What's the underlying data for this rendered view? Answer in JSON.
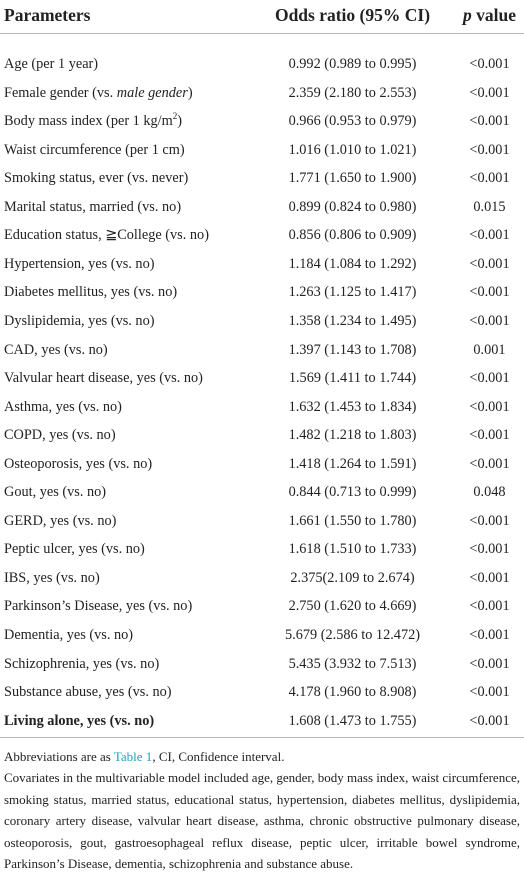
{
  "table": {
    "header": [
      "Parameters",
      "Odds ratio (95% CI)",
      [
        "p",
        " value"
      ]
    ],
    "rows": [
      [
        "Age (per 1 year)",
        "0.992 (0.989 to 0.995)",
        "<0.001"
      ],
      [
        [
          "Female gender (vs. ",
          "male gender",
          ")"
        ],
        "2.359 (2.180 to 2.553)",
        "<0.001"
      ],
      [
        [
          "Body mass index (per 1 kg/m",
          "2",
          ")"
        ],
        "0.966 (0.953 to 0.979)",
        "<0.001"
      ],
      [
        "Waist circumference (per 1 cm)",
        "1.016 (1.010 to 1.021)",
        "<0.001"
      ],
      [
        "Smoking status, ever (vs. never)",
        "1.771 (1.650 to 1.900)",
        "<0.001"
      ],
      [
        "Marital status, married (vs. no)",
        "0.899 (0.824 to 0.980)",
        "0.015"
      ],
      [
        "Education status, ≧College (vs. no)",
        "0.856 (0.806 to 0.909)",
        "<0.001"
      ],
      [
        "Hypertension, yes (vs. no)",
        "1.184 (1.084 to 1.292)",
        "<0.001"
      ],
      [
        "Diabetes mellitus, yes (vs. no)",
        "1.263 (1.125 to 1.417)",
        "<0.001"
      ],
      [
        "Dyslipidemia, yes (vs. no)",
        "1.358 (1.234 to 1.495)",
        "<0.001"
      ],
      [
        "CAD, yes (vs. no)",
        "1.397 (1.143 to 1.708)",
        "0.001"
      ],
      [
        "Valvular heart disease, yes (vs. no)",
        "1.569 (1.411 to 1.744)",
        "<0.001"
      ],
      [
        "Asthma, yes (vs. no)",
        "1.632 (1.453 to 1.834)",
        "<0.001"
      ],
      [
        "COPD, yes (vs. no)",
        "1.482 (1.218 to 1.803)",
        "<0.001"
      ],
      [
        "Osteoporosis, yes (vs. no)",
        "1.418 (1.264 to 1.591)",
        "<0.001"
      ],
      [
        "Gout, yes (vs. no)",
        "0.844 (0.713 to 0.999)",
        "0.048"
      ],
      [
        "GERD, yes (vs. no)",
        "1.661 (1.550 to 1.780)",
        "<0.001"
      ],
      [
        "Peptic ulcer, yes (vs. no)",
        "1.618 (1.510 to 1.733)",
        "<0.001"
      ],
      [
        "IBS, yes (vs. no)",
        "2.375(2.109 to 2.674)",
        "<0.001"
      ],
      [
        "Parkinson’s Disease, yes (vs. no)",
        "2.750 (1.620 to 4.669)",
        "<0.001"
      ],
      [
        "Dementia, yes (vs. no)",
        "5.679 (2.586 to 12.472)",
        "<0.001"
      ],
      [
        "Schizophrenia, yes (vs. no)",
        "5.435 (3.932 to 7.513)",
        "<0.001"
      ],
      [
        "Substance abuse, yes (vs. no)",
        "4.178 (1.960 to 8.908)",
        "<0.001"
      ],
      [
        "Living alone, yes (vs. no)",
        "1.608 (1.473 to 1.755)",
        "<0.001"
      ]
    ],
    "footnotes": [
      [
        "Abbreviations are as ",
        "Table 1",
        ", CI, Confidence interval."
      ],
      "Covariates in the multivariable model included age, gender, body mass index, waist circumference, smoking status, married status, educational status, hypertension, diabetes mellitus, dyslipidemia, coronary artery disease, valvular heart disease, asthma, chronic obstructive pulmonary disease, osteoporosis, gout, gastroesophageal reflux disease, peptic ulcer, irritable bowel syndrome, Parkinson’s Disease, dementia, schizophrenia and substance abuse."
    ]
  }
}
